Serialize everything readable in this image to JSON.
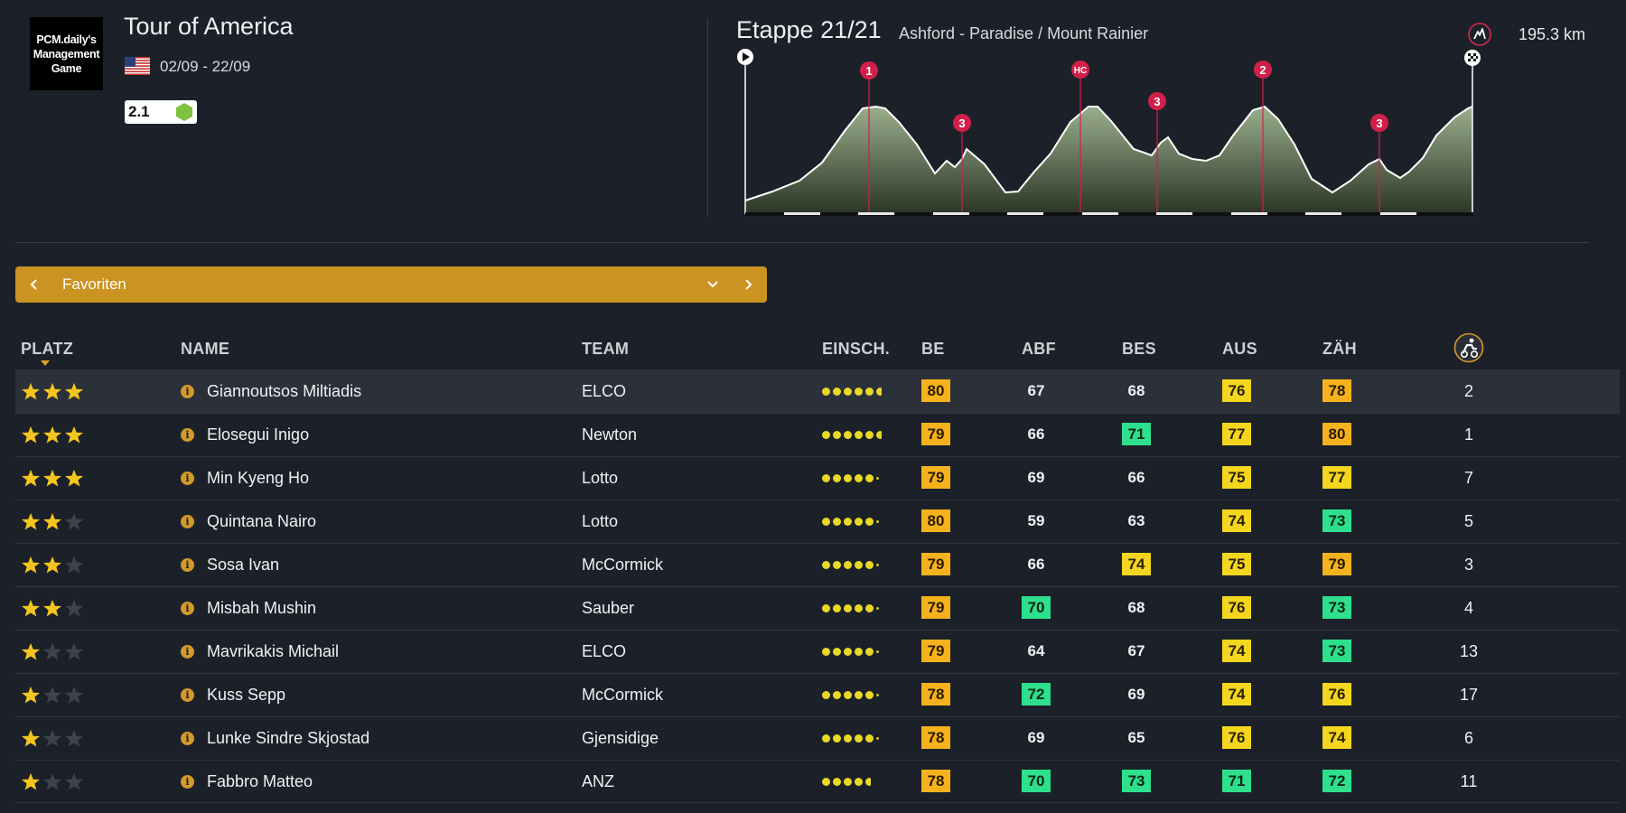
{
  "logo": {
    "line1": "PCM.daily's",
    "line2": "Management",
    "line3": "Game"
  },
  "race": {
    "title": "Tour of America",
    "dates": "02/09 - 22/09",
    "category": "2.1",
    "flag": "us-flag-icon"
  },
  "stage": {
    "label": "Etappe 21/21",
    "route": "Ashford - Paradise / Mount Rainier",
    "distance": "195.3 km",
    "climbs": [
      "1",
      "3",
      "HC",
      "3",
      "2",
      "3"
    ]
  },
  "selector": {
    "label": "Favoriten"
  },
  "columns": {
    "platz": "PLATZ",
    "name": "NAME",
    "team": "TEAM",
    "einsch": "EINSCH.",
    "be": "BE",
    "abf": "ABF",
    "bes": "BES",
    "aus": "AUS",
    "zah": "ZÄH"
  },
  "colors": {
    "yellow": "#f4d61f",
    "orange": "#f5b21c",
    "green": "#2ee08b",
    "accent": "#cb9322"
  },
  "riders": [
    {
      "stars": 3,
      "name": "Giannoutsos Miltiadis",
      "team": "ELCO",
      "form": 5.5,
      "be": {
        "v": "80",
        "c": "o"
      },
      "abf": {
        "v": "67",
        "c": ""
      },
      "bes": {
        "v": "68",
        "c": ""
      },
      "aus": {
        "v": "76",
        "c": "y"
      },
      "zah": {
        "v": "78",
        "c": "o"
      },
      "rank": "2"
    },
    {
      "stars": 3,
      "name": "Elosegui Inigo",
      "team": "Newton",
      "form": 5.5,
      "be": {
        "v": "79",
        "c": "o"
      },
      "abf": {
        "v": "66",
        "c": ""
      },
      "bes": {
        "v": "71",
        "c": "g"
      },
      "aus": {
        "v": "77",
        "c": "y"
      },
      "zah": {
        "v": "80",
        "c": "o"
      },
      "rank": "1"
    },
    {
      "stars": 3,
      "name": "Min Kyeng Ho",
      "team": "Lotto",
      "form": 5,
      "be": {
        "v": "79",
        "c": "o"
      },
      "abf": {
        "v": "69",
        "c": ""
      },
      "bes": {
        "v": "66",
        "c": ""
      },
      "aus": {
        "v": "75",
        "c": "y"
      },
      "zah": {
        "v": "77",
        "c": "y"
      },
      "rank": "7"
    },
    {
      "stars": 2,
      "name": "Quintana Nairo",
      "team": "Lotto",
      "form": 5,
      "be": {
        "v": "80",
        "c": "o"
      },
      "abf": {
        "v": "59",
        "c": ""
      },
      "bes": {
        "v": "63",
        "c": ""
      },
      "aus": {
        "v": "74",
        "c": "y"
      },
      "zah": {
        "v": "73",
        "c": "g"
      },
      "rank": "5"
    },
    {
      "stars": 2,
      "name": "Sosa Ivan",
      "team": "McCormick",
      "form": 5,
      "be": {
        "v": "79",
        "c": "o"
      },
      "abf": {
        "v": "66",
        "c": ""
      },
      "bes": {
        "v": "74",
        "c": "y"
      },
      "aus": {
        "v": "75",
        "c": "y"
      },
      "zah": {
        "v": "79",
        "c": "o"
      },
      "rank": "3"
    },
    {
      "stars": 2,
      "name": "Misbah Mushin",
      "team": "Sauber",
      "form": 5,
      "be": {
        "v": "79",
        "c": "o"
      },
      "abf": {
        "v": "70",
        "c": "g"
      },
      "bes": {
        "v": "68",
        "c": ""
      },
      "aus": {
        "v": "76",
        "c": "y"
      },
      "zah": {
        "v": "73",
        "c": "g"
      },
      "rank": "4"
    },
    {
      "stars": 1,
      "name": "Mavrikakis Michail",
      "team": "ELCO",
      "form": 5,
      "be": {
        "v": "79",
        "c": "o"
      },
      "abf": {
        "v": "64",
        "c": ""
      },
      "bes": {
        "v": "67",
        "c": ""
      },
      "aus": {
        "v": "74",
        "c": "y"
      },
      "zah": {
        "v": "73",
        "c": "g"
      },
      "rank": "13"
    },
    {
      "stars": 1,
      "name": "Kuss Sepp",
      "team": "McCormick",
      "form": 5,
      "be": {
        "v": "78",
        "c": "o"
      },
      "abf": {
        "v": "72",
        "c": "g"
      },
      "bes": {
        "v": "69",
        "c": ""
      },
      "aus": {
        "v": "74",
        "c": "y"
      },
      "zah": {
        "v": "76",
        "c": "y"
      },
      "rank": "17"
    },
    {
      "stars": 1,
      "name": "Lunke Sindre Skjostad",
      "team": "Gjensidige",
      "form": 5,
      "be": {
        "v": "78",
        "c": "o"
      },
      "abf": {
        "v": "69",
        "c": ""
      },
      "bes": {
        "v": "65",
        "c": ""
      },
      "aus": {
        "v": "76",
        "c": "y"
      },
      "zah": {
        "v": "74",
        "c": "y"
      },
      "rank": "6"
    },
    {
      "stars": 1,
      "name": "Fabbro Matteo",
      "team": "ANZ",
      "form": 4.5,
      "be": {
        "v": "78",
        "c": "o"
      },
      "abf": {
        "v": "70",
        "c": "g"
      },
      "bes": {
        "v": "73",
        "c": "g"
      },
      "aus": {
        "v": "71",
        "c": "g"
      },
      "zah": {
        "v": "72",
        "c": "g"
      },
      "rank": "11"
    }
  ]
}
